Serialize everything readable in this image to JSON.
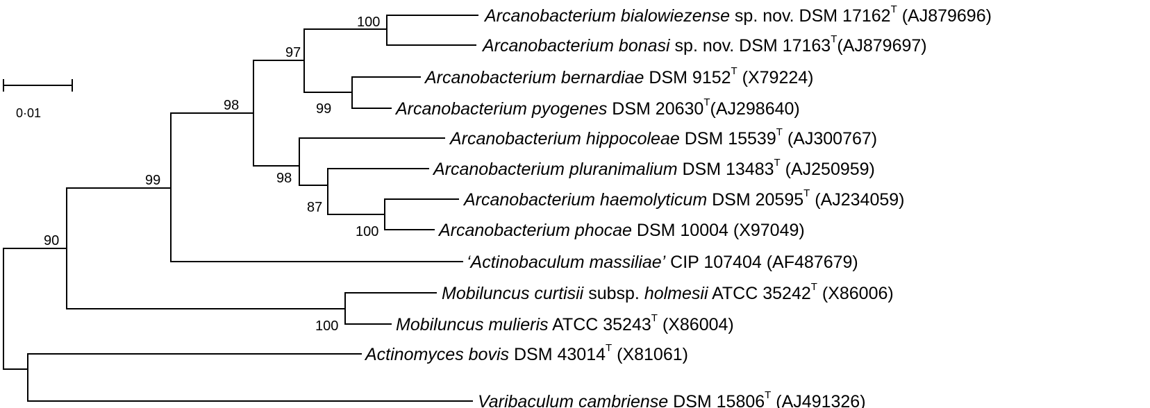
{
  "scale_bar": {
    "label": "0·01"
  },
  "bootstrap": [
    "100",
    "97",
    "99",
    "98",
    "98",
    "87",
    "100",
    "99",
    "90",
    "100"
  ],
  "taxa": [
    {
      "sci": "Arcanobacterium bialowiezense",
      "rest": " sp. nov.  DSM 17162",
      "sup": "T",
      "acc": " (AJ879696)"
    },
    {
      "sci": "Arcanobacterium bonasi",
      "rest": " sp. nov.  DSM 17163",
      "sup": "T",
      "acc": "(AJ879697)"
    },
    {
      "sci": "Arcanobacterium bernardiae",
      "rest": " DSM 9152",
      "sup": "T",
      "acc": " (X79224)"
    },
    {
      "sci": "Arcanobacterium pyogenes",
      "rest": " DSM 20630",
      "sup": "T",
      "acc": "(AJ298640)"
    },
    {
      "sci": "Arcanobacterium hippocoleae",
      "rest": " DSM 15539",
      "sup": "T",
      "acc": " (AJ300767)"
    },
    {
      "sci": "Arcanobacterium pluranimalium",
      "rest": " DSM 13483",
      "sup": "T",
      "acc": " (AJ250959)"
    },
    {
      "sci": "Arcanobacterium haemolyticum",
      "rest": "  DSM 20595",
      "sup": "T",
      "acc": " (AJ234059)"
    },
    {
      "sci": "Arcanobacterium phocae",
      "rest": " DSM 10004 (X97049)",
      "sup": "",
      "acc": ""
    },
    {
      "sci": "‘Actinobaculum massiliae’",
      "rest": " CIP 107404 (AF487679)",
      "sup": "",
      "acc": ""
    },
    {
      "sci": "Mobiluncus curtisii",
      "rest": " subsp. ",
      "sci2": "holmesii",
      "rest2": " ATCC 35242",
      "sup": "T",
      "acc": " (X86006)"
    },
    {
      "sci": "Mobiluncus mulieris",
      "rest": " ATCC 35243",
      "sup": "T",
      "acc": " (X86004)"
    },
    {
      "sci": "Actinomyces bovis",
      "rest": "  DSM 43014",
      "sup": "T",
      "acc": " (X81061)"
    },
    {
      "sci": "Varibaculum cambriense",
      "rest": " DSM 15806",
      "sup": "T",
      "acc": " (AJ491326)"
    }
  ]
}
